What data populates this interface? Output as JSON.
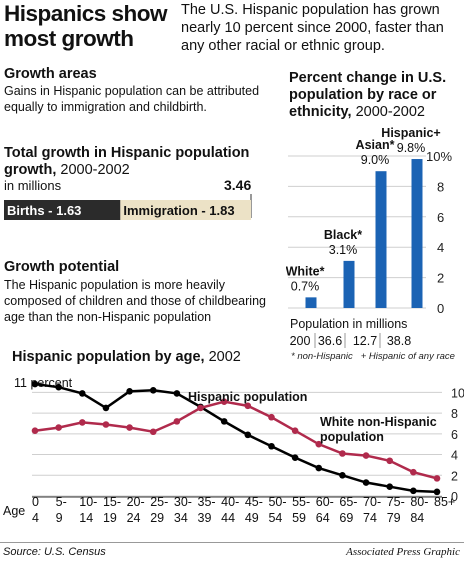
{
  "headline": [
    "Hispanics show",
    "most growth"
  ],
  "deck": "The U.S. Hispanic population has grown nearly 10 percent since 2000, faster than any other racial or ethnic group.",
  "growth_areas": {
    "title": "Growth areas",
    "text": "Gains in Hispanic population can be attributed equally to immigration and childbirth."
  },
  "total_growth": {
    "title_bold": "Total growth in Hispanic population growth,",
    "title_years": "2000-2002",
    "units": "in millions",
    "total_label": "3.46"
  },
  "growth_potential": {
    "title": "Growth potential",
    "text": "The Hispanic population is more heavily composed of children and those of childbearing age than the non-Hispanic population"
  },
  "percent_change": {
    "title_bold": "Percent change in U.S. population by race or ethnicity,",
    "title_years": "2000-2002",
    "population_label": "Population in millions",
    "footnote": "* non-Hispanic   + Hispanic of any race"
  },
  "age_chart": {
    "title_bold": "Hispanic population by age,",
    "title_year": "2002"
  },
  "source": "Source: U.S. Census",
  "credit": "Associated Press Graphic",
  "colors": {
    "births_bar": "#2b2b2b",
    "immigration_bar": "#ece2c6",
    "blue_bar": "#1b63b4",
    "hispanic_line": "#000000",
    "white_line": "#b02a4c",
    "grid": "#cfcfcf"
  },
  "chart_data": [
    {
      "type": "bar",
      "orientation": "horizontal-stacked",
      "title": "Total growth in Hispanic population growth, 2000-2002",
      "ylabel": "in millions",
      "total": 3.46,
      "series": [
        {
          "name": "Births",
          "label": "Births - 1.63",
          "value": 1.63
        },
        {
          "name": "Immigration",
          "label": "Immigration - 1.83",
          "value": 1.83
        }
      ]
    },
    {
      "type": "bar",
      "title": "Percent change in U.S. population by race or ethnicity, 2000-2002",
      "categories": [
        "White*",
        "Black*",
        "Asian*",
        "Hispanic+"
      ],
      "values": [
        0.7,
        3.1,
        9.0,
        9.8
      ],
      "value_labels": [
        "0.7%",
        "3.1%",
        "9.0%",
        "9.8%"
      ],
      "population_millions": [
        "200",
        "36.6",
        "12.7",
        "38.8"
      ],
      "yticks": [
        "0",
        "2",
        "4",
        "6",
        "8",
        "10%"
      ],
      "ylim": [
        0,
        10
      ],
      "grid": true
    },
    {
      "type": "line",
      "title": "Hispanic population by age, 2002",
      "ylabel": "11 percent",
      "xlabel": "Age",
      "categories": [
        "0 - 4",
        "5 - 9",
        "10 - 14",
        "15 - 19",
        "20 - 24",
        "25 - 29",
        "30 - 34",
        "35 - 39",
        "40 - 44",
        "45 - 49",
        "50 - 54",
        "55 - 59",
        "60 - 64",
        "65 - 69",
        "70 - 74",
        "75 - 79",
        "80 - 84",
        "85 +"
      ],
      "category_lines": [
        [
          "0",
          "4"
        ],
        [
          "5-",
          "9"
        ],
        [
          "10-",
          "14"
        ],
        [
          "15-",
          "19"
        ],
        [
          "20-",
          "24"
        ],
        [
          "25-",
          "29"
        ],
        [
          "30-",
          "34"
        ],
        [
          "35-",
          "39"
        ],
        [
          "40-",
          "44"
        ],
        [
          "45-",
          "49"
        ],
        [
          "50-",
          "54"
        ],
        [
          "55-",
          "59"
        ],
        [
          "60-",
          "64"
        ],
        [
          "65-",
          "69"
        ],
        [
          "70-",
          "74"
        ],
        [
          "75-",
          "79"
        ],
        [
          "80-",
          "84"
        ],
        [
          "85+",
          ""
        ]
      ],
      "series": [
        {
          "name": "Hispanic population",
          "values": [
            10.8,
            10.5,
            9.9,
            8.5,
            10.1,
            10.2,
            9.9,
            8.6,
            7.2,
            5.9,
            4.8,
            3.7,
            2.7,
            2.0,
            1.3,
            0.9,
            0.5,
            0.4
          ]
        },
        {
          "name": "White non-Hispanic population",
          "values": [
            6.3,
            6.6,
            7.1,
            6.9,
            6.6,
            6.2,
            7.2,
            8.5,
            9.1,
            8.7,
            7.6,
            6.3,
            5.0,
            4.1,
            3.9,
            3.4,
            2.3,
            1.7
          ]
        }
      ],
      "ylim": [
        0,
        11
      ],
      "yticks": [
        "0",
        "2",
        "4",
        "6",
        "8",
        "10"
      ],
      "grid": true,
      "legend": "inline labels"
    }
  ]
}
